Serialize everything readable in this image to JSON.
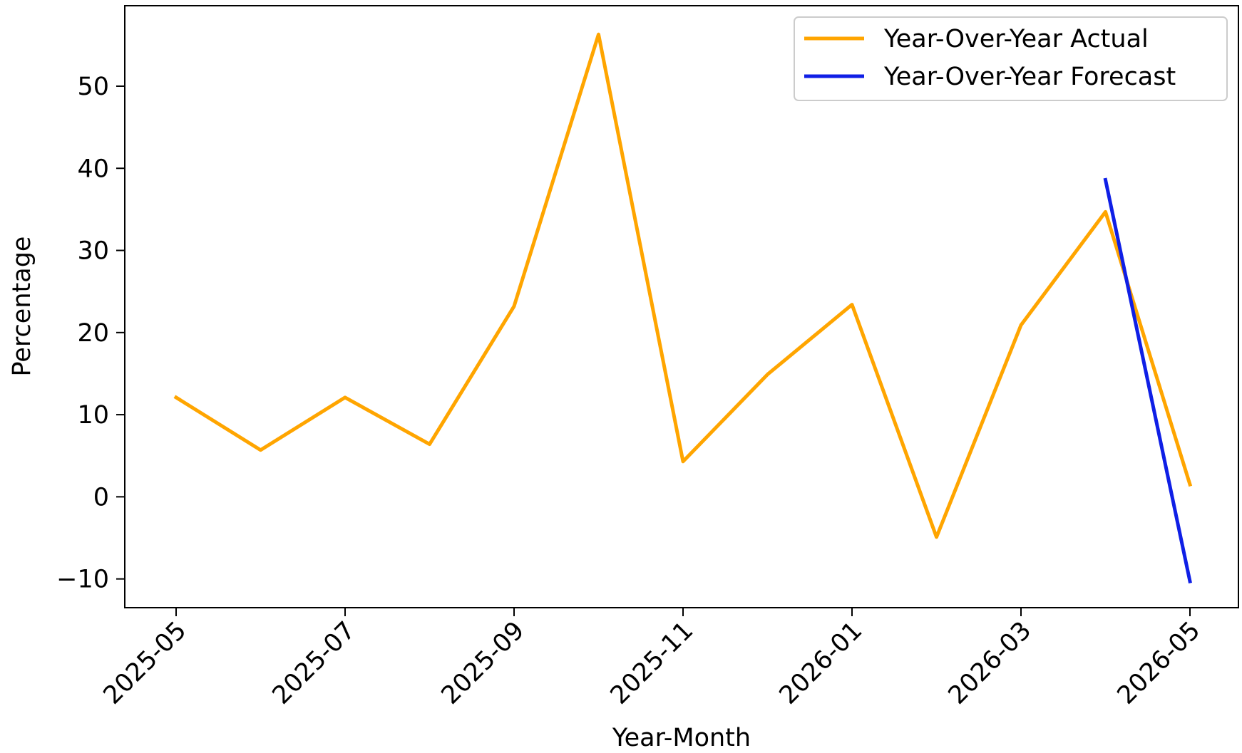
{
  "chart_data": {
    "type": "line",
    "title": "",
    "xlabel": "Year-Month",
    "ylabel": "Percentage",
    "x": [
      "2025-05",
      "2025-06",
      "2025-07",
      "2025-08",
      "2025-09",
      "2025-10",
      "2025-11",
      "2025-12",
      "2026-01",
      "2026-02",
      "2026-03",
      "2026-04",
      "2026-05"
    ],
    "xticks": [
      "2025-05",
      "2025-07",
      "2025-09",
      "2025-11",
      "2026-01",
      "2026-03",
      "2026-05"
    ],
    "yticks": [
      -10,
      0,
      10,
      20,
      30,
      40,
      50
    ],
    "ytick_labels": [
      "−10",
      "0",
      "10",
      "20",
      "30",
      "40",
      "50"
    ],
    "ylim": [
      -13.5,
      59.8
    ],
    "grid": false,
    "legend_position": "top-right",
    "series": [
      {
        "name": "Year-Over-Year Actual",
        "color": "#FFA500",
        "x": [
          "2025-05",
          "2025-06",
          "2025-07",
          "2025-08",
          "2025-09",
          "2025-10",
          "2025-11",
          "2025-12",
          "2026-01",
          "2026-02",
          "2026-03",
          "2026-04",
          "2026-05"
        ],
        "values": [
          12.1,
          5.7,
          12.1,
          6.4,
          23.2,
          56.3,
          4.3,
          14.9,
          23.4,
          -4.9,
          20.9,
          34.7,
          1.5
        ]
      },
      {
        "name": "Year-Over-Year Forecast",
        "color": "#0F1FE6",
        "x": [
          "2026-04",
          "2026-05"
        ],
        "values": [
          38.6,
          -10.3
        ]
      }
    ]
  }
}
